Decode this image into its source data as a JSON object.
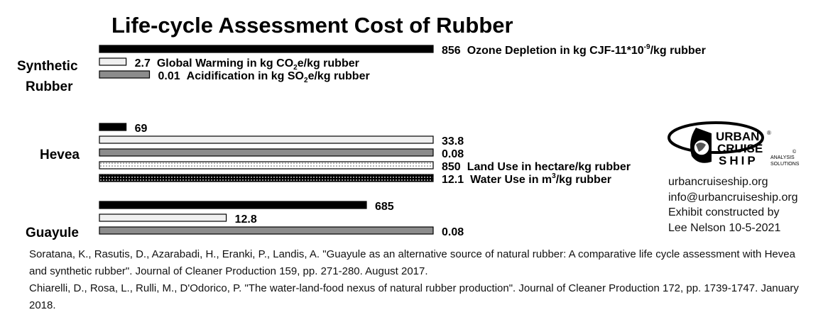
{
  "chart_data": {
    "type": "bar",
    "orientation": "horizontal",
    "title": "Life-cycle Assessment Cost of Rubber",
    "groups": [
      {
        "name": "Synthetic Rubber",
        "bars": [
          {
            "metric": "Ozone Depletion",
            "label": "856",
            "value": 856,
            "annotation": "Ozone Depletion in kg CJF-11*10",
            "sup": "-9",
            "annotation_tail": "/kg rubber"
          },
          {
            "metric": "Global Warming",
            "label": "2.7",
            "value": 2.7,
            "annotation": "Global Warming in kg CO",
            "sub": "2",
            "annotation_tail": "e/kg rubber"
          },
          {
            "metric": "Acidification",
            "label": "0.01",
            "value": 0.01,
            "annotation": "Acidification in kg SO",
            "sub": "2",
            "annotation_tail": "e/kg rubber"
          }
        ]
      },
      {
        "name": "Hevea",
        "bars": [
          {
            "metric": "Ozone Depletion",
            "label": "69",
            "value": 69
          },
          {
            "metric": "Global Warming",
            "label": "33.8",
            "value": 33.8
          },
          {
            "metric": "Acidification",
            "label": "0.08",
            "value": 0.08
          },
          {
            "metric": "Land Use",
            "label": "850",
            "value": 850,
            "annotation": "Land Use in hectare/kg rubber"
          },
          {
            "metric": "Water Use",
            "label": "12.1",
            "value": 12.1,
            "annotation": "Water Use in m",
            "sup": "3",
            "annotation_tail": "/kg rubber"
          }
        ]
      },
      {
        "name": "Guayule",
        "bars": [
          {
            "metric": "Ozone Depletion",
            "label": "685",
            "value": 685
          },
          {
            "metric": "Global Warming",
            "label": "12.8",
            "value": 12.8
          },
          {
            "metric": "Acidification",
            "label": "0.08",
            "value": 0.08
          }
        ]
      }
    ],
    "bar_fill_fraction": [
      [
        1.0,
        0.08,
        0.15
      ],
      [
        0.08,
        1.0,
        1.0,
        1.0,
        1.0
      ],
      [
        0.8,
        0.38,
        1.0
      ]
    ],
    "metric_colors": {
      "Ozone Depletion": "#000000",
      "Global Warming": "#f0f0f0",
      "Acidification": "#8c8c8c",
      "Land Use": "dotted-light",
      "Water Use": "dotted-dark"
    },
    "grid": false,
    "legend": "none"
  },
  "info": {
    "logo_lines": [
      "URBAN",
      "CRUISE",
      "SHIP"
    ],
    "logo_sub": [
      "ANALYSIS",
      "SOLUTIONS"
    ],
    "logo_marks": [
      "®",
      "©"
    ],
    "website": "urbancruiseship.org",
    "email": "info@urbancruiseship.org",
    "credit_line1": "Exhibit constructed by",
    "credit_line2": "Lee Nelson 10-5-2021"
  },
  "references": [
    "Soratana, K., Rasutis, D., Azarabadi, H., Eranki, P., Landis, A. \"Guayule as an alternative source of natural rubber: A comparative life cycle assessment with Hevea and synthetic rubber\". Journal of Cleaner Production 159, pp. 271-280. August 2017.",
    "Chiarelli, D., Rosa, L., Rulli, M., D'Odorico, P. \"The water-land-food nexus of natural rubber production\". Journal of Cleaner Production 172, pp. 1739-1747. January 2018."
  ]
}
